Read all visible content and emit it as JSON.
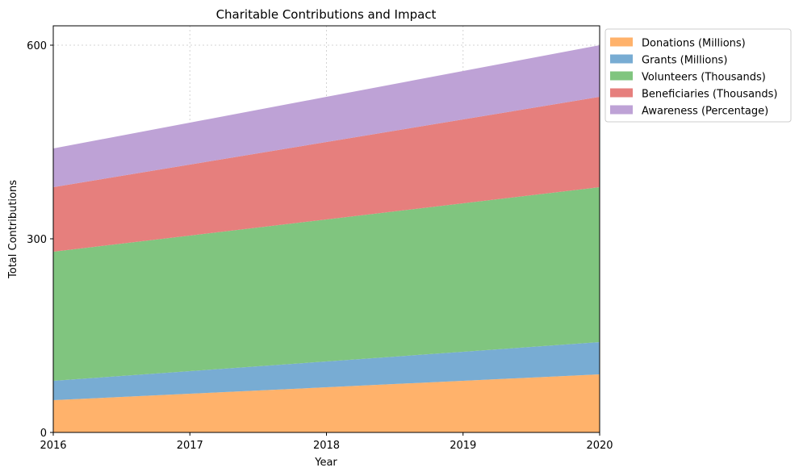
{
  "chart_data": {
    "type": "area",
    "stacked": true,
    "title": "Charitable Contributions and Impact",
    "xlabel": "Year",
    "ylabel": "Total Contributions",
    "x": [
      2016,
      2017,
      2018,
      2019,
      2020
    ],
    "xlim": [
      2016,
      2020
    ],
    "ylim": [
      0,
      630
    ],
    "yticks": [
      0,
      300,
      600
    ],
    "grid": true,
    "legend_position": "outside-top-right",
    "series": [
      {
        "name": "Donations (Millions)",
        "color": "#ffb26b",
        "values": [
          50,
          60,
          70,
          80,
          90
        ]
      },
      {
        "name": "Grants (Millions)",
        "color": "#78acd3",
        "values": [
          30,
          35,
          40,
          45,
          50
        ]
      },
      {
        "name": "Volunteers (Thousands)",
        "color": "#80c57f",
        "values": [
          200,
          210,
          220,
          230,
          240
        ]
      },
      {
        "name": "Beneficiaries (Thousands)",
        "color": "#e67f7d",
        "values": [
          100,
          110,
          120,
          130,
          140
        ]
      },
      {
        "name": "Awareness (Percentage)",
        "color": "#bea2d6",
        "values": [
          60,
          65,
          70,
          75,
          80
        ]
      }
    ]
  }
}
